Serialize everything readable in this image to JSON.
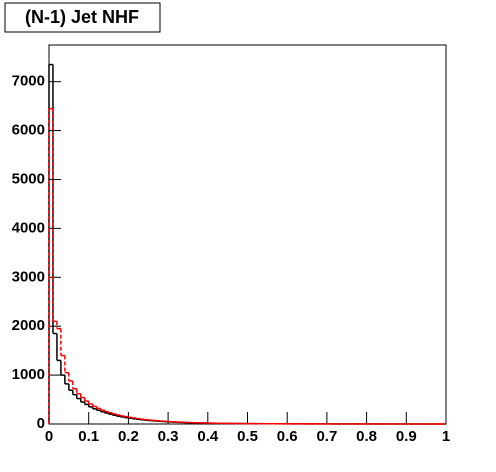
{
  "chart_data": {
    "type": "histogram",
    "title": "(N-1) Jet NHF",
    "bins": [
      0,
      0.01,
      0.02,
      0.03,
      0.04,
      0.05,
      0.06,
      0.07,
      0.08,
      0.09,
      0.1,
      0.11,
      0.12,
      0.13,
      0.14,
      0.15,
      0.16,
      0.17,
      0.18,
      0.19,
      0.2,
      0.21,
      0.22,
      0.23,
      0.24,
      0.25,
      0.26,
      0.27,
      0.28,
      0.29,
      0.3,
      0.31,
      0.32,
      0.33,
      0.34,
      0.35,
      0.36,
      0.37,
      0.38,
      0.39,
      0.4,
      0.41,
      0.42,
      0.43,
      0.44,
      0.45,
      0.46,
      0.47,
      0.48,
      0.49,
      0.5,
      0.51,
      0.52,
      0.53,
      0.54,
      0.55,
      0.56,
      0.57,
      0.58,
      0.59,
      0.6,
      0.61,
      0.62,
      0.63,
      0.64,
      0.65,
      0.66,
      0.67,
      0.68,
      0.69,
      0.7,
      0.71,
      0.72,
      0.73,
      0.74,
      0.75,
      0.76,
      0.77,
      0.78,
      0.79,
      0.8,
      0.81,
      0.82,
      0.83,
      0.84,
      0.85,
      0.86,
      0.87,
      0.88,
      0.89,
      0.9,
      0.91,
      0.92,
      0.93,
      0.94,
      0.95,
      0.96,
      0.97,
      0.98,
      0.99,
      1
    ],
    "series": [
      {
        "color": "#000000",
        "linestyle": "solid",
        "values": [
          7350,
          1850,
          1300,
          1000,
          820,
          690,
          600,
          520,
          450,
          400,
          350,
          310,
          280,
          250,
          225,
          200,
          180,
          160,
          145,
          130,
          118,
          106,
          95,
          86,
          78,
          70,
          63,
          57,
          52,
          47,
          43,
          39,
          35,
          32,
          29,
          26,
          24,
          22,
          20,
          18,
          16,
          15,
          14,
          13,
          12,
          11,
          10,
          9,
          8,
          8,
          7,
          7,
          6,
          6,
          5,
          5,
          5,
          4,
          4,
          4,
          3,
          3,
          3,
          3,
          2,
          2,
          2,
          2,
          2,
          2,
          2,
          1,
          1,
          1,
          1,
          1,
          1,
          1,
          1,
          1,
          1,
          1,
          1,
          0,
          1,
          0,
          1,
          0,
          0,
          1,
          0,
          0,
          1,
          0,
          0,
          0,
          0,
          0,
          0,
          0
        ]
      },
      {
        "color": "#ff0000",
        "linestyle": "dashed",
        "values": [
          6450,
          2100,
          1950,
          1400,
          1050,
          880,
          720,
          620,
          540,
          470,
          410,
          360,
          320,
          285,
          255,
          230,
          205,
          185,
          165,
          150,
          135,
          122,
          110,
          99,
          90,
          81,
          73,
          66,
          60,
          54,
          49,
          45,
          41,
          37,
          33,
          30,
          27,
          25,
          23,
          21,
          19,
          17,
          16,
          14,
          13,
          12,
          11,
          10,
          9,
          9,
          8,
          7,
          7,
          6,
          6,
          5,
          5,
          5,
          4,
          4,
          4,
          3,
          3,
          3,
          3,
          2,
          2,
          2,
          2,
          2,
          2,
          2,
          1,
          1,
          1,
          1,
          1,
          1,
          1,
          1,
          1,
          1,
          1,
          1,
          0,
          1,
          1,
          0,
          1,
          0,
          1,
          0,
          0,
          1,
          0,
          0,
          0,
          0,
          0,
          0
        ]
      }
    ],
    "xlim": [
      0,
      1
    ],
    "xticks": [
      0,
      0.1,
      0.2,
      0.3,
      0.4,
      0.5,
      0.6,
      0.7,
      0.8,
      0.9,
      1
    ],
    "ylim": [
      0,
      7750
    ],
    "yticks": [
      0,
      1000,
      2000,
      3000,
      4000,
      5000,
      6000,
      7000
    ]
  }
}
